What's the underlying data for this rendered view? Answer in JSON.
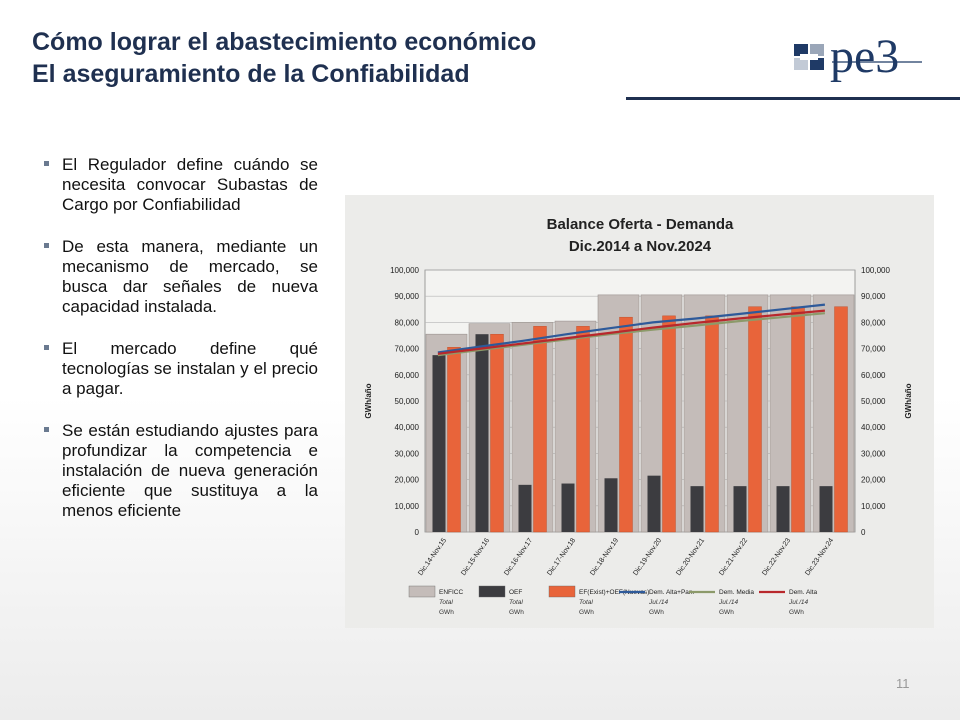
{
  "header": {
    "title_line1": "Cómo lograr el abastecimiento económico",
    "title_line2": "El aseguramiento de la Confiabilidad",
    "logo_text": "pe3"
  },
  "bullets": [
    "El Regulador define cuándo se necesita convocar Subastas de Cargo por Confiabilidad",
    "De esta manera, mediante un mecanismo de mercado, se busca dar señales de nueva capacidad instalada.",
    "El mercado define qué tecnologías se instalan y el precio a pagar.",
    "Se están estudiando ajustes para profundizar la competencia e instalación de nueva generación eficiente que sustituya a la menos eficiente"
  ],
  "page_number": "11",
  "chart_data": {
    "type": "bar",
    "title": "Balance Oferta - Demanda",
    "subtitle": "Dic.2014 a Nov.2024",
    "ylabel": "GWh/año",
    "ylabel_right": "GWh/año",
    "ylim": [
      0,
      100000
    ],
    "yticks": [
      "0",
      "10,000",
      "20,000",
      "30,000",
      "40,000",
      "50,000",
      "60,000",
      "70,000",
      "80,000",
      "90,000",
      "100,000"
    ],
    "grid": true,
    "legend_position": "bottom",
    "categories": [
      "Dic.14-Nov.15",
      "Dic.15-Nov.16",
      "Dic.16-Nov.17",
      "Dic.17-Nov.18",
      "Dic.18-Nov.19",
      "Dic.19-Nov.20",
      "Dic.20-Nov.21",
      "Dic.21-Nov.22",
      "Dic.22-Nov.23",
      "Dic.23-Nov.24"
    ],
    "series": [
      {
        "name": "ENFICC",
        "legend_sub": [
          "Total",
          "GWh"
        ],
        "kind": "bar",
        "color": "#c4bcb9",
        "values": [
          75500,
          79500,
          80000,
          80500,
          90500,
          90500,
          90500,
          90500,
          90500,
          90500
        ]
      },
      {
        "name": "OEF",
        "legend_sub": [
          "Total",
          "GWh"
        ],
        "kind": "bar",
        "color": "#3c3c40",
        "values": [
          67500,
          75500,
          18000,
          18500,
          20500,
          21500,
          17500,
          17500,
          17500,
          17500
        ]
      },
      {
        "name": "EF(Exist)+OEF(Nuevas)",
        "legend_sub": [
          "Total",
          "GWh"
        ],
        "kind": "bar",
        "color": "#e8643a",
        "values": [
          70500,
          75500,
          78500,
          78500,
          82000,
          82500,
          82500,
          86000,
          86000,
          86000
        ]
      },
      {
        "name": "Dem. Alta+Pan.",
        "legend_sub": [
          "Jul./14",
          "GWh"
        ],
        "kind": "line",
        "color": "#2e5a9a",
        "values": [
          68500,
          70800,
          73000,
          75500,
          77800,
          80000,
          81500,
          83200,
          85000,
          86800
        ]
      },
      {
        "name": "Dem. Media",
        "legend_sub": [
          "Jul./14",
          "GWh"
        ],
        "kind": "line",
        "color": "#8c9a6a",
        "values": [
          67500,
          69500,
          71500,
          73500,
          75500,
          77200,
          78800,
          80500,
          82000,
          83500
        ]
      },
      {
        "name": "Dem. Alta",
        "legend_sub": [
          "Jul./14",
          "GWh"
        ],
        "kind": "line",
        "color": "#b8282c",
        "values": [
          68000,
          70000,
          72000,
          74000,
          76000,
          78000,
          79800,
          81500,
          83000,
          84500
        ]
      }
    ]
  }
}
